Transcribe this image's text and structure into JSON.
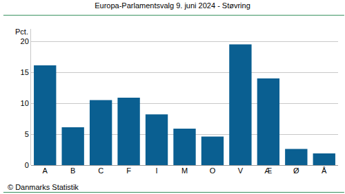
{
  "chart_data": {
    "type": "bar",
    "title": "Europa-Parlamentsvalg 9. juni 2024 - Støvring",
    "ylabel": "Pct.",
    "annotations": [
      "© Danmarks Statistik"
    ],
    "categories": [
      "A",
      "B",
      "C",
      "F",
      "I",
      "M",
      "O",
      "V",
      "Æ",
      "Ø",
      "Å"
    ],
    "values": [
      16.1,
      6.1,
      10.5,
      10.9,
      8.2,
      5.9,
      4.6,
      19.5,
      14.0,
      2.6,
      1.9
    ],
    "color": "#0a5f91",
    "ylim": [
      0,
      22
    ],
    "yticks": [
      0,
      5,
      10,
      15,
      20
    ],
    "grid": true
  }
}
